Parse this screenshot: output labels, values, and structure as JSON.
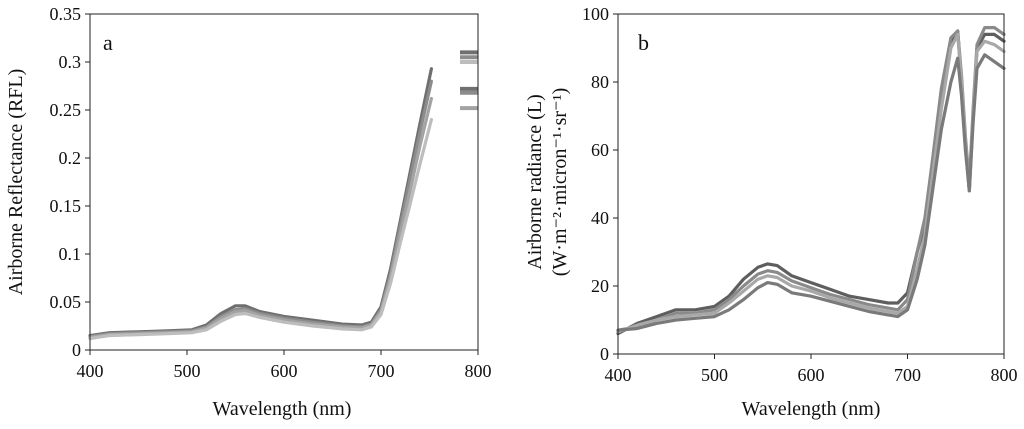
{
  "chart_data": [
    {
      "panel": "a",
      "type": "line",
      "panel_label": "a",
      "xlabel": "Wavelength (nm)",
      "ylabel": "Airborne Reflectance (RFL)",
      "xlim": [
        400,
        800
      ],
      "ylim": [
        0,
        0.35
      ],
      "xticks": [
        400,
        500,
        600,
        700,
        800
      ],
      "xtick_labels": [
        "400",
        "500",
        "600",
        "700",
        "800"
      ],
      "yticks": [
        0,
        0.05,
        0.1,
        0.15,
        0.2,
        0.25,
        0.3,
        0.35
      ],
      "ytick_labels": [
        "0",
        "0.05",
        "0.1",
        "0.15",
        "0.2",
        "0.25",
        "0.3",
        "0.35"
      ],
      "grid": false,
      "series": [
        {
          "name": "s1",
          "color": "#6f6f6f",
          "x": [
            400,
            420,
            450,
            480,
            505,
            520,
            535,
            550,
            560,
            575,
            600,
            630,
            660,
            680,
            690,
            700,
            710,
            720,
            730,
            740,
            752
          ],
          "y": [
            0.015,
            0.018,
            0.019,
            0.02,
            0.021,
            0.026,
            0.038,
            0.046,
            0.046,
            0.04,
            0.035,
            0.031,
            0.027,
            0.026,
            0.029,
            0.045,
            0.085,
            0.135,
            0.185,
            0.235,
            0.293
          ]
        },
        {
          "name": "s2",
          "color": "#8c8c8c",
          "x": [
            400,
            420,
            450,
            480,
            505,
            520,
            535,
            550,
            560,
            575,
            600,
            630,
            660,
            680,
            690,
            700,
            710,
            720,
            730,
            740,
            752
          ],
          "y": [
            0.014,
            0.017,
            0.018,
            0.019,
            0.02,
            0.024,
            0.035,
            0.042,
            0.043,
            0.038,
            0.033,
            0.029,
            0.025,
            0.024,
            0.027,
            0.042,
            0.08,
            0.13,
            0.178,
            0.226,
            0.28
          ]
        },
        {
          "name": "s3",
          "color": "#a3a3a3",
          "x": [
            400,
            420,
            450,
            480,
            505,
            520,
            535,
            550,
            560,
            575,
            600,
            630,
            660,
            680,
            690,
            700,
            710,
            720,
            730,
            740,
            752
          ],
          "y": [
            0.013,
            0.016,
            0.017,
            0.018,
            0.019,
            0.023,
            0.033,
            0.04,
            0.041,
            0.036,
            0.031,
            0.027,
            0.024,
            0.023,
            0.026,
            0.04,
            0.076,
            0.122,
            0.166,
            0.212,
            0.262
          ]
        },
        {
          "name": "s4",
          "color": "#bdbdbd",
          "x": [
            400,
            420,
            450,
            480,
            505,
            520,
            535,
            550,
            560,
            575,
            600,
            630,
            660,
            680,
            690,
            700,
            710,
            720,
            730,
            740,
            752
          ],
          "y": [
            0.012,
            0.015,
            0.016,
            0.017,
            0.018,
            0.021,
            0.03,
            0.037,
            0.038,
            0.034,
            0.029,
            0.025,
            0.022,
            0.021,
            0.024,
            0.037,
            0.07,
            0.112,
            0.152,
            0.193,
            0.24
          ]
        }
      ],
      "edge_marks": [
        {
          "y": 0.31,
          "color": "#6f6f6f"
        },
        {
          "y": 0.305,
          "color": "#8c8c8c"
        },
        {
          "y": 0.3,
          "color": "#bdbdbd"
        },
        {
          "y": 0.272,
          "color": "#6f6f6f"
        },
        {
          "y": 0.268,
          "color": "#8c8c8c"
        },
        {
          "y": 0.252,
          "color": "#a3a3a3"
        }
      ]
    },
    {
      "panel": "b",
      "type": "line",
      "panel_label": "b",
      "xlabel": "Wavelength (nm)",
      "ylabel_line1": "Airborne radiance (L)",
      "ylabel_line2": "(W·m⁻²·micron⁻¹·sr⁻¹)",
      "xlim": [
        400,
        800
      ],
      "ylim": [
        0,
        100
      ],
      "xticks": [
        400,
        500,
        600,
        700,
        800
      ],
      "xtick_labels": [
        "400",
        "500",
        "600",
        "700",
        "800"
      ],
      "yticks": [
        0,
        20,
        40,
        60,
        80,
        100
      ],
      "ytick_labels": [
        "0",
        "20",
        "40",
        "60",
        "80",
        "100"
      ],
      "grid": false,
      "series": [
        {
          "name": "s1",
          "color": "#5e5e5e",
          "x": [
            400,
            420,
            440,
            460,
            480,
            500,
            515,
            530,
            545,
            555,
            565,
            580,
            600,
            620,
            640,
            660,
            680,
            690,
            700,
            710,
            718,
            725,
            735,
            745,
            752,
            756,
            760,
            764,
            768,
            772,
            780,
            790,
            800
          ],
          "y": [
            6,
            9,
            11,
            13,
            13,
            14,
            17,
            22,
            25.5,
            26.5,
            26,
            23,
            21,
            19,
            17,
            16,
            15,
            15,
            18,
            30,
            38,
            52,
            75,
            92,
            95,
            80,
            62,
            48,
            70,
            90,
            94,
            94,
            92
          ]
        },
        {
          "name": "s2",
          "color": "#8a8a8a",
          "x": [
            400,
            420,
            440,
            460,
            480,
            500,
            515,
            530,
            545,
            555,
            565,
            580,
            600,
            620,
            640,
            660,
            680,
            690,
            700,
            710,
            718,
            725,
            735,
            745,
            752,
            756,
            760,
            764,
            768,
            772,
            780,
            790,
            800
          ],
          "y": [
            7,
            8,
            10,
            12,
            12,
            13,
            16,
            20,
            23.5,
            24.5,
            24,
            21.5,
            19.5,
            17.5,
            16,
            14.5,
            13.5,
            13,
            16,
            30,
            40,
            55,
            78,
            93,
            95,
            82,
            64,
            50,
            72,
            91,
            96,
            96,
            94
          ]
        },
        {
          "name": "s3",
          "color": "#a8a8a8",
          "x": [
            400,
            420,
            440,
            460,
            480,
            500,
            515,
            530,
            545,
            555,
            565,
            580,
            600,
            620,
            640,
            660,
            680,
            690,
            700,
            710,
            718,
            725,
            735,
            745,
            752,
            756,
            760,
            764,
            768,
            772,
            780,
            790,
            800
          ],
          "y": [
            6.5,
            8.5,
            10,
            11,
            11.5,
            12,
            15,
            18.5,
            22,
            23,
            22.5,
            20,
            18.5,
            16.5,
            15,
            13.5,
            12.5,
            12,
            14,
            25,
            35,
            50,
            72,
            90,
            94,
            80,
            62,
            48,
            70,
            89,
            92,
            91,
            89
          ]
        },
        {
          "name": "s4",
          "color": "#7a7a7a",
          "x": [
            400,
            420,
            440,
            460,
            480,
            500,
            515,
            530,
            545,
            555,
            565,
            580,
            600,
            620,
            640,
            660,
            680,
            690,
            700,
            710,
            718,
            725,
            735,
            745,
            752,
            756,
            760,
            764,
            768,
            772,
            780,
            790,
            800
          ],
          "y": [
            7,
            7.5,
            9,
            10,
            10.5,
            11,
            13,
            16,
            19.5,
            21,
            20.5,
            18,
            17,
            15.5,
            14,
            12.5,
            11.5,
            11,
            13,
            22,
            32,
            46,
            66,
            80,
            87,
            76,
            60,
            48,
            68,
            84,
            88,
            86,
            84
          ]
        }
      ]
    }
  ]
}
